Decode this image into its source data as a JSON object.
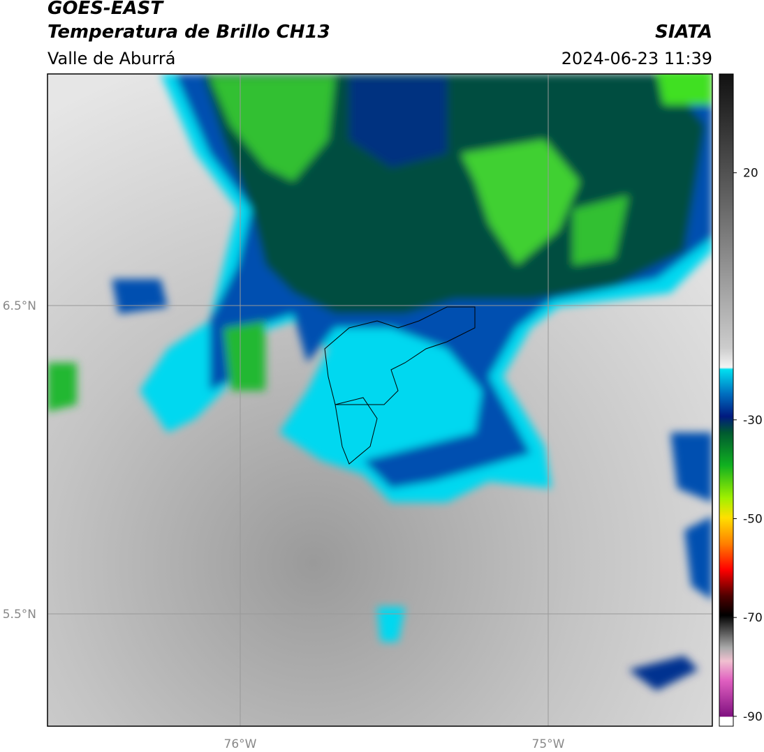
{
  "header": {
    "satellite": "GOES-EAST",
    "product": "Temperatura de Brillo CH13",
    "region": "Valle de Aburrá",
    "agency": "SIATA",
    "datetime": "2024-06-23 11:39"
  },
  "map": {
    "lat_labels": [
      "6.5°N",
      "5.5°N"
    ],
    "lon_labels": [
      "76°W",
      "75°W"
    ]
  },
  "colorbar": {
    "range": [
      -92,
      40
    ],
    "ticks": [
      20,
      -30,
      -50,
      -70,
      -90
    ]
  }
}
